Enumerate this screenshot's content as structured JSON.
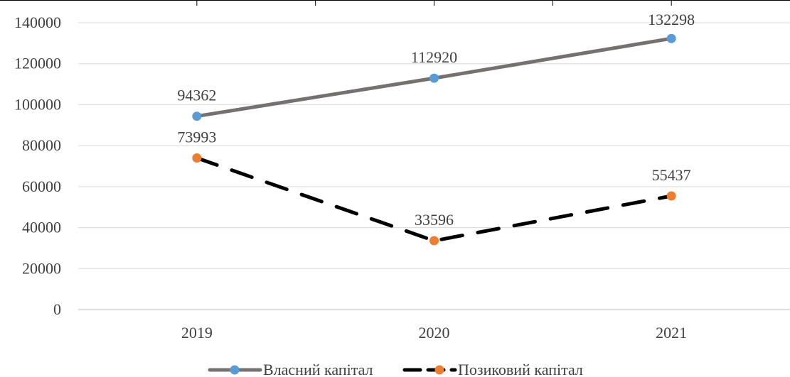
{
  "chart_data": {
    "type": "line",
    "categories": [
      "2019",
      "2020",
      "2021"
    ],
    "series": [
      {
        "name": "Власний капітал",
        "values": [
          94362,
          112920,
          132298
        ],
        "line_color": "#767171",
        "marker_color": "#5B9BD5",
        "dashed": false
      },
      {
        "name": "Позиковий капітал",
        "values": [
          73993,
          33596,
          55437
        ],
        "line_color": "#000000",
        "marker_color": "#ED7D31",
        "dashed": true
      }
    ],
    "y_ticks": [
      0,
      20000,
      40000,
      60000,
      80000,
      100000,
      120000,
      140000
    ],
    "ylim": [
      0,
      140000
    ],
    "grid": true,
    "legend_position": "bottom",
    "data_labels": true
  }
}
